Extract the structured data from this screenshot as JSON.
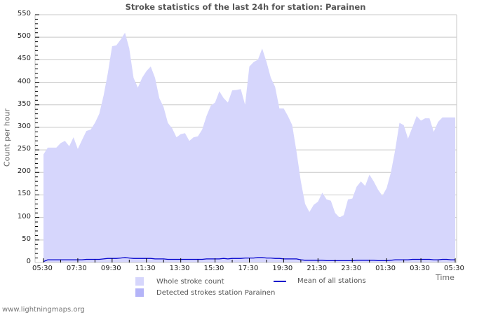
{
  "chart_data": {
    "type": "area",
    "title": "Stroke statistics of the last 24h for station: Parainen",
    "xlabel": "Time",
    "ylabel": "Count per hour",
    "ylim": [
      0,
      550
    ],
    "yticks": [
      0,
      50,
      100,
      150,
      200,
      250,
      300,
      350,
      400,
      450,
      500,
      550
    ],
    "xticks": [
      "05:30",
      "07:30",
      "09:30",
      "11:30",
      "13:30",
      "15:30",
      "17:30",
      "19:30",
      "21:30",
      "23:30",
      "01:30",
      "03:30",
      "05:30"
    ],
    "grid": true,
    "legend_position": "bottom",
    "x_hours": [
      0,
      0.25,
      0.5,
      0.75,
      1,
      1.25,
      1.5,
      1.75,
      2,
      2.25,
      2.5,
      2.75,
      3,
      3.25,
      3.5,
      3.75,
      4,
      4.25,
      4.5,
      4.75,
      5,
      5.25,
      5.5,
      5.75,
      6,
      6.25,
      6.5,
      6.75,
      7,
      7.25,
      7.5,
      7.75,
      8,
      8.25,
      8.5,
      8.75,
      9,
      9.25,
      9.5,
      9.75,
      10,
      10.25,
      10.5,
      10.75,
      11,
      11.25,
      11.5,
      11.75,
      12,
      12.25,
      12.5,
      12.75,
      13,
      13.25,
      13.5,
      13.75,
      14,
      14.25,
      14.5,
      14.75,
      15,
      15.25,
      15.5,
      15.75,
      16,
      16.25,
      16.5,
      16.75,
      17,
      17.25,
      17.5,
      17.75,
      18,
      18.25,
      18.5,
      18.75,
      19,
      19.25,
      19.5,
      19.75,
      20,
      20.25,
      20.5,
      20.75,
      21,
      21.25,
      21.5,
      21.75,
      22,
      22.25,
      22.5,
      22.75,
      23,
      23.25,
      23.5,
      23.75,
      24
    ],
    "series": [
      {
        "name": "Whole stroke count",
        "color": "#d6d6fc",
        "values": [
          240,
          255,
          255,
          255,
          265,
          270,
          258,
          278,
          252,
          272,
          292,
          295,
          310,
          330,
          370,
          420,
          480,
          482,
          495,
          510,
          475,
          410,
          388,
          410,
          425,
          435,
          410,
          365,
          345,
          310,
          298,
          278,
          285,
          287,
          270,
          278,
          280,
          295,
          325,
          348,
          355,
          380,
          365,
          355,
          382,
          383,
          385,
          350,
          435,
          445,
          450,
          475,
          445,
          410,
          390,
          342,
          342,
          325,
          305,
          245,
          180,
          130,
          112,
          128,
          135,
          155,
          140,
          137,
          110,
          100,
          105,
          140,
          142,
          168,
          180,
          170,
          195,
          180,
          162,
          148,
          165,
          200,
          250,
          310,
          305,
          275,
          300,
          325,
          315,
          320,
          320,
          290,
          312,
          322,
          322,
          322,
          322
        ]
      },
      {
        "name": "Detected strokes station Parainen",
        "color": "#b4b4f8",
        "values": [
          0,
          0,
          0,
          0,
          0,
          0,
          0,
          0,
          0,
          0,
          0,
          0,
          0,
          0,
          0,
          0,
          0,
          0,
          0,
          0,
          0,
          0,
          0,
          0,
          0,
          0,
          0,
          0,
          0,
          0,
          0,
          0,
          0,
          0,
          0,
          0,
          0,
          0,
          0,
          0,
          0,
          0,
          0,
          0,
          0,
          0,
          0,
          0,
          0,
          0,
          0,
          0,
          0,
          0,
          0,
          0,
          0,
          0,
          0,
          0,
          0,
          0,
          0,
          0,
          0,
          0,
          0,
          0,
          0,
          0,
          0,
          0,
          0,
          0,
          0,
          0,
          0,
          0,
          0,
          0,
          0,
          0,
          0,
          0,
          0,
          0,
          0,
          0,
          0,
          0,
          0,
          0,
          0,
          0,
          0,
          0,
          0
        ]
      },
      {
        "name": "Mean of all stations",
        "color": "#0000cc",
        "values": [
          2,
          6,
          6,
          6,
          6,
          6,
          6,
          6,
          6,
          6,
          7,
          7,
          7,
          7,
          8,
          9,
          9,
          9,
          10,
          11,
          10,
          9,
          9,
          9,
          9,
          9,
          8,
          8,
          8,
          7,
          7,
          7,
          7,
          7,
          7,
          7,
          7,
          7,
          8,
          8,
          8,
          8,
          9,
          8,
          9,
          9,
          9,
          10,
          10,
          10,
          11,
          11,
          10,
          10,
          9,
          9,
          8,
          8,
          8,
          8,
          6,
          5,
          5,
          5,
          5,
          5,
          4,
          4,
          4,
          4,
          4,
          4,
          4,
          5,
          5,
          5,
          5,
          5,
          4,
          4,
          4,
          5,
          6,
          6,
          6,
          6,
          7,
          7,
          7,
          7,
          7,
          6,
          6,
          7,
          7,
          6,
          6
        ]
      }
    ]
  },
  "legend": {
    "whole": "Whole stroke count",
    "detected": "Detected strokes station Parainen",
    "mean": "Mean of all stations"
  },
  "footer": {
    "credit": "www.lightningmaps.org"
  }
}
